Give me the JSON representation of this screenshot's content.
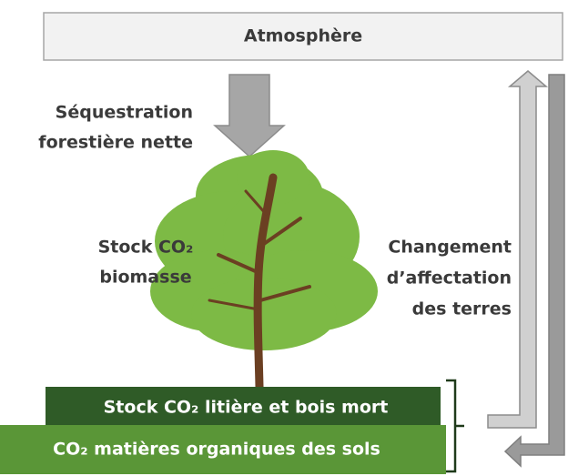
{
  "atmosphere": "Atmosphère",
  "sequestration": [
    "Séquestration",
    "forestière nette"
  ],
  "biomass": [
    "Stock CO₂",
    "biomasse"
  ],
  "land_use": [
    "Changement",
    "d’affectation",
    "des terres"
  ],
  "litter": "Stock CO₂ litière et bois mort",
  "soil": "CO₂ matières organiques des sols"
}
